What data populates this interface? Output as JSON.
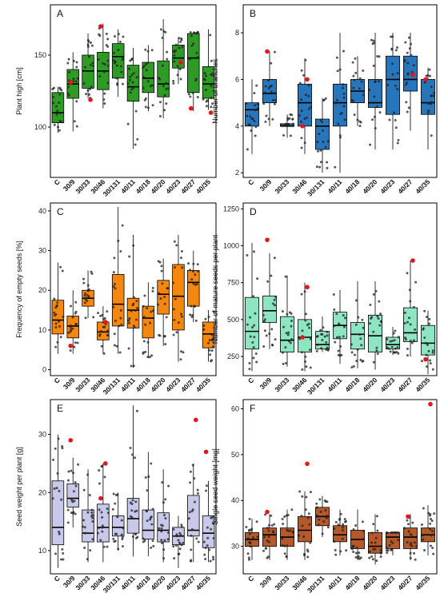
{
  "chart_data": [
    {
      "panel": "A",
      "type": "box",
      "ylabel": "Plant high [cm]",
      "categories": [
        "C",
        "30/9",
        "30/33",
        "30/46",
        "30/131",
        "40/11",
        "40/18",
        "40/20",
        "40/23",
        "40/27",
        "40/35"
      ],
      "ylim": [
        65,
        185
      ],
      "yticks": [
        100,
        150
      ],
      "color": "#2e9b25",
      "boxes": [
        {
          "q1": 103,
          "median": 110,
          "q3": 124,
          "low": 96,
          "high": 128
        },
        {
          "q1": 120,
          "median": 130,
          "q3": 140,
          "low": 97,
          "high": 152
        },
        {
          "q1": 127,
          "median": 139,
          "q3": 150,
          "low": 120,
          "high": 165
        },
        {
          "q1": 126,
          "median": 139,
          "q3": 152,
          "low": 113,
          "high": 172
        },
        {
          "q1": 134,
          "median": 149,
          "q3": 158,
          "low": 121,
          "high": 168
        },
        {
          "q1": 118,
          "median": 128,
          "q3": 143,
          "low": 85,
          "high": 155
        },
        {
          "q1": 124,
          "median": 134,
          "q3": 145,
          "low": 111,
          "high": 157
        },
        {
          "q1": 121,
          "median": 130,
          "q3": 146,
          "low": 106,
          "high": 175
        },
        {
          "q1": 141,
          "median": 148,
          "q3": 157,
          "low": 130,
          "high": 162
        },
        {
          "q1": 124,
          "median": 148,
          "q3": 165,
          "low": 111,
          "high": 166
        },
        {
          "q1": 120,
          "median": 130,
          "q3": 142,
          "low": 112,
          "high": 168
        }
      ],
      "outliers_red": [
        [
          1,
          131
        ],
        [
          2,
          119
        ],
        [
          3,
          170
        ],
        [
          8,
          145
        ],
        [
          9,
          113
        ],
        [
          10,
          110
        ]
      ]
    },
    {
      "panel": "B",
      "type": "box",
      "ylabel": "Number of branches",
      "categories": [
        "C",
        "30/9",
        "30/33",
        "30/46",
        "30/131",
        "40/11",
        "40/18",
        "40/20",
        "40/23",
        "40/27",
        "40/35"
      ],
      "ylim": [
        1.8,
        9.2
      ],
      "yticks": [
        2,
        4,
        6,
        8
      ],
      "color": "#2776bb",
      "boxes": [
        {
          "q1": 4.0,
          "median": 4.7,
          "q3": 5.0,
          "low": 2.8,
          "high": 6.0
        },
        {
          "q1": 5.0,
          "median": 5.4,
          "q3": 6.0,
          "low": 4.0,
          "high": 7.2
        },
        {
          "q1": 4.0,
          "median": 4.0,
          "q3": 4.1,
          "low": 3.5,
          "high": 4.5
        },
        {
          "q1": 4.0,
          "median": 5.0,
          "q3": 5.8,
          "low": 2.8,
          "high": 6.9
        },
        {
          "q1": 3.0,
          "median": 4.0,
          "q3": 4.3,
          "low": 2.0,
          "high": 5.2
        },
        {
          "q1": 4.0,
          "median": 5.0,
          "q3": 5.8,
          "low": 2.0,
          "high": 8.0
        },
        {
          "q1": 5.0,
          "median": 5.5,
          "q3": 6.0,
          "low": 4.0,
          "high": 7.0
        },
        {
          "q1": 4.8,
          "median": 5.0,
          "q3": 6.0,
          "low": 3.0,
          "high": 8.0
        },
        {
          "q1": 4.5,
          "median": 6.0,
          "q3": 7.0,
          "low": 3.0,
          "high": 8.0
        },
        {
          "q1": 5.5,
          "median": 6.0,
          "q3": 7.0,
          "low": 3.8,
          "high": 8.0
        },
        {
          "q1": 4.5,
          "median": 5.0,
          "q3": 6.0,
          "low": 3.0,
          "high": 6.5
        }
      ],
      "outliers_red": [
        [
          1,
          7.2
        ],
        [
          3,
          6.0
        ],
        [
          3,
          4.0
        ],
        [
          9,
          6.2
        ],
        [
          10,
          6.0
        ]
      ]
    },
    {
      "panel": "C",
      "type": "box",
      "ylabel": "Frequency of empty seeds [%]",
      "categories": [
        "C",
        "30/9",
        "30/33",
        "30/46",
        "30/131",
        "40/11",
        "40/18",
        "40/20",
        "40/23",
        "40/27",
        "40/35"
      ],
      "ylim": [
        -1.5,
        42
      ],
      "yticks": [
        0,
        10,
        20,
        30,
        40
      ],
      "color": "#f5860e",
      "boxes": [
        {
          "q1": 9.0,
          "median": 12.5,
          "q3": 17.5,
          "low": 4.0,
          "high": 27.0
        },
        {
          "q1": 8.0,
          "median": 11.0,
          "q3": 13.5,
          "low": 4.0,
          "high": 20.0
        },
        {
          "q1": 16.0,
          "median": 18.0,
          "q3": 20.0,
          "low": 13.0,
          "high": 25.0
        },
        {
          "q1": 7.5,
          "median": 9.5,
          "q3": 12.0,
          "low": 4.0,
          "high": 16.0
        },
        {
          "q1": 11.0,
          "median": 16.5,
          "q3": 24.0,
          "low": 4.0,
          "high": 41.0
        },
        {
          "q1": 10.5,
          "median": 15.0,
          "q3": 18.0,
          "low": 0.5,
          "high": 34.0
        },
        {
          "q1": 8.0,
          "median": 13.0,
          "q3": 16.0,
          "low": 3.0,
          "high": 22.0
        },
        {
          "q1": 14.0,
          "median": 19.0,
          "q3": 22.5,
          "low": 6.0,
          "high": 28.0
        },
        {
          "q1": 10.0,
          "median": 18.5,
          "q3": 26.5,
          "low": 2.0,
          "high": 34.0
        },
        {
          "q1": 16.0,
          "median": 22.0,
          "q3": 25.0,
          "low": 12.0,
          "high": 30.0
        },
        {
          "q1": 5.5,
          "median": 9.0,
          "q3": 12.0,
          "low": 2.0,
          "high": 15.0
        }
      ],
      "outliers_red": [
        [
          1,
          6.0
        ],
        [
          3,
          12.0
        ]
      ]
    },
    {
      "panel": "D",
      "type": "box",
      "ylabel": "Number of mature seeds per plant",
      "categories": [
        "C",
        "30/9",
        "30/33",
        "30/46",
        "30/131",
        "40/11",
        "40/18",
        "40/20",
        "40/23",
        "40/27",
        "40/35"
      ],
      "ylim": [
        120,
        1290
      ],
      "yticks": [
        250,
        500,
        750,
        1000,
        1250
      ],
      "color": "#8ee5c2",
      "boxes": [
        {
          "q1": 300,
          "median": 420,
          "q3": 650,
          "low": 150,
          "high": 1020
        },
        {
          "q1": 480,
          "median": 560,
          "q3": 660,
          "low": 300,
          "high": 950
        },
        {
          "q1": 280,
          "median": 360,
          "q3": 520,
          "low": 180,
          "high": 800
        },
        {
          "q1": 280,
          "median": 380,
          "q3": 500,
          "low": 150,
          "high": 750
        },
        {
          "q1": 300,
          "median": 330,
          "q3": 420,
          "low": 280,
          "high": 520
        },
        {
          "q1": 370,
          "median": 460,
          "q3": 550,
          "low": 200,
          "high": 700
        },
        {
          "q1": 300,
          "median": 400,
          "q3": 480,
          "low": 170,
          "high": 760
        },
        {
          "q1": 280,
          "median": 390,
          "q3": 530,
          "low": 160,
          "high": 760
        },
        {
          "q1": 300,
          "median": 330,
          "q3": 380,
          "low": 260,
          "high": 450
        },
        {
          "q1": 350,
          "median": 410,
          "q3": 580,
          "low": 250,
          "high": 900
        },
        {
          "q1": 260,
          "median": 340,
          "q3": 460,
          "low": 130,
          "high": 560
        }
      ],
      "outliers_red": [
        [
          1,
          1040
        ],
        [
          3,
          720
        ],
        [
          3,
          380
        ],
        [
          9,
          900
        ],
        [
          10,
          230
        ]
      ]
    },
    {
      "panel": "E",
      "type": "box",
      "ylabel": "Seed weight per plant [g]",
      "categories": [
        "C",
        "30/9",
        "30/33",
        "30/46",
        "30/131",
        "40/11",
        "40/18",
        "40/20",
        "40/23",
        "40/27",
        "40/35"
      ],
      "ylim": [
        6,
        36
      ],
      "yticks": [
        10,
        20,
        30
      ],
      "color": "#c8c8ea",
      "boxes": [
        {
          "q1": 11.0,
          "median": 14.0,
          "q3": 22.0,
          "low": 7.0,
          "high": 30.0
        },
        {
          "q1": 17.5,
          "median": 19.0,
          "q3": 21.5,
          "low": 14.0,
          "high": 26.0
        },
        {
          "q1": 11.5,
          "median": 13.0,
          "q3": 17.0,
          "low": 8.0,
          "high": 24.0
        },
        {
          "q1": 11.5,
          "median": 14.0,
          "q3": 18.0,
          "low": 8.0,
          "high": 25.0
        },
        {
          "q1": 12.5,
          "median": 14.0,
          "q3": 16.0,
          "low": 10.0,
          "high": 20.0
        },
        {
          "q1": 13.0,
          "median": 15.5,
          "q3": 19.0,
          "low": 9.0,
          "high": 35.0
        },
        {
          "q1": 12.0,
          "median": 13.5,
          "q3": 17.0,
          "low": 9.0,
          "high": 27.0
        },
        {
          "q1": 11.5,
          "median": 13.5,
          "q3": 16.5,
          "low": 8.0,
          "high": 24.0
        },
        {
          "q1": 11.0,
          "median": 12.5,
          "q3": 14.0,
          "low": 7.0,
          "high": 16.0
        },
        {
          "q1": 12.5,
          "median": 13.5,
          "q3": 19.5,
          "low": 8.0,
          "high": 25.0
        },
        {
          "q1": 10.5,
          "median": 13.0,
          "q3": 16.0,
          "low": 8.0,
          "high": 22.0
        }
      ],
      "outliers_red": [
        [
          1,
          29.0
        ],
        [
          3,
          25.0
        ],
        [
          3,
          19.0
        ],
        [
          9,
          32.5
        ],
        [
          10,
          27.0
        ]
      ]
    },
    {
      "panel": "F",
      "type": "box",
      "ylabel": "Single seed weight [mg]",
      "categories": [
        "C",
        "30/9",
        "30/33",
        "30/46",
        "30/131",
        "40/11",
        "40/18",
        "40/20",
        "40/23",
        "40/27",
        "40/35"
      ],
      "ylim": [
        24,
        62
      ],
      "yticks": [
        30,
        40,
        50,
        60
      ],
      "color": "#b45a2a",
      "boxes": [
        {
          "q1": 30.0,
          "median": 31.5,
          "q3": 33.0,
          "low": 27.0,
          "high": 36.0
        },
        {
          "q1": 30.0,
          "median": 32.5,
          "q3": 34.0,
          "low": 27.0,
          "high": 37.0
        },
        {
          "q1": 30.0,
          "median": 32.0,
          "q3": 34.0,
          "low": 27.0,
          "high": 38.0
        },
        {
          "q1": 31.0,
          "median": 33.5,
          "q3": 36.5,
          "low": 27.0,
          "high": 42.0
        },
        {
          "q1": 34.5,
          "median": 36.5,
          "q3": 38.5,
          "low": 32.0,
          "high": 41.0
        },
        {
          "q1": 31.0,
          "median": 32.5,
          "q3": 34.5,
          "low": 28.0,
          "high": 38.0
        },
        {
          "q1": 29.5,
          "median": 31.5,
          "q3": 33.5,
          "low": 27.0,
          "high": 38.0
        },
        {
          "q1": 28.5,
          "median": 30.0,
          "q3": 33.0,
          "low": 26.0,
          "high": 37.0
        },
        {
          "q1": 29.5,
          "median": 32.0,
          "q3": 33.0,
          "low": 28.0,
          "high": 33.0
        },
        {
          "q1": 29.5,
          "median": 32.0,
          "q3": 34.0,
          "low": 27.0,
          "high": 37.0
        },
        {
          "q1": 31.0,
          "median": 32.5,
          "q3": 34.0,
          "low": 28.0,
          "high": 39.0
        }
      ],
      "outliers_red": [
        [
          1,
          37.5
        ],
        [
          3,
          48.0
        ],
        [
          9,
          36.5
        ],
        [
          10,
          61.0
        ]
      ]
    }
  ]
}
